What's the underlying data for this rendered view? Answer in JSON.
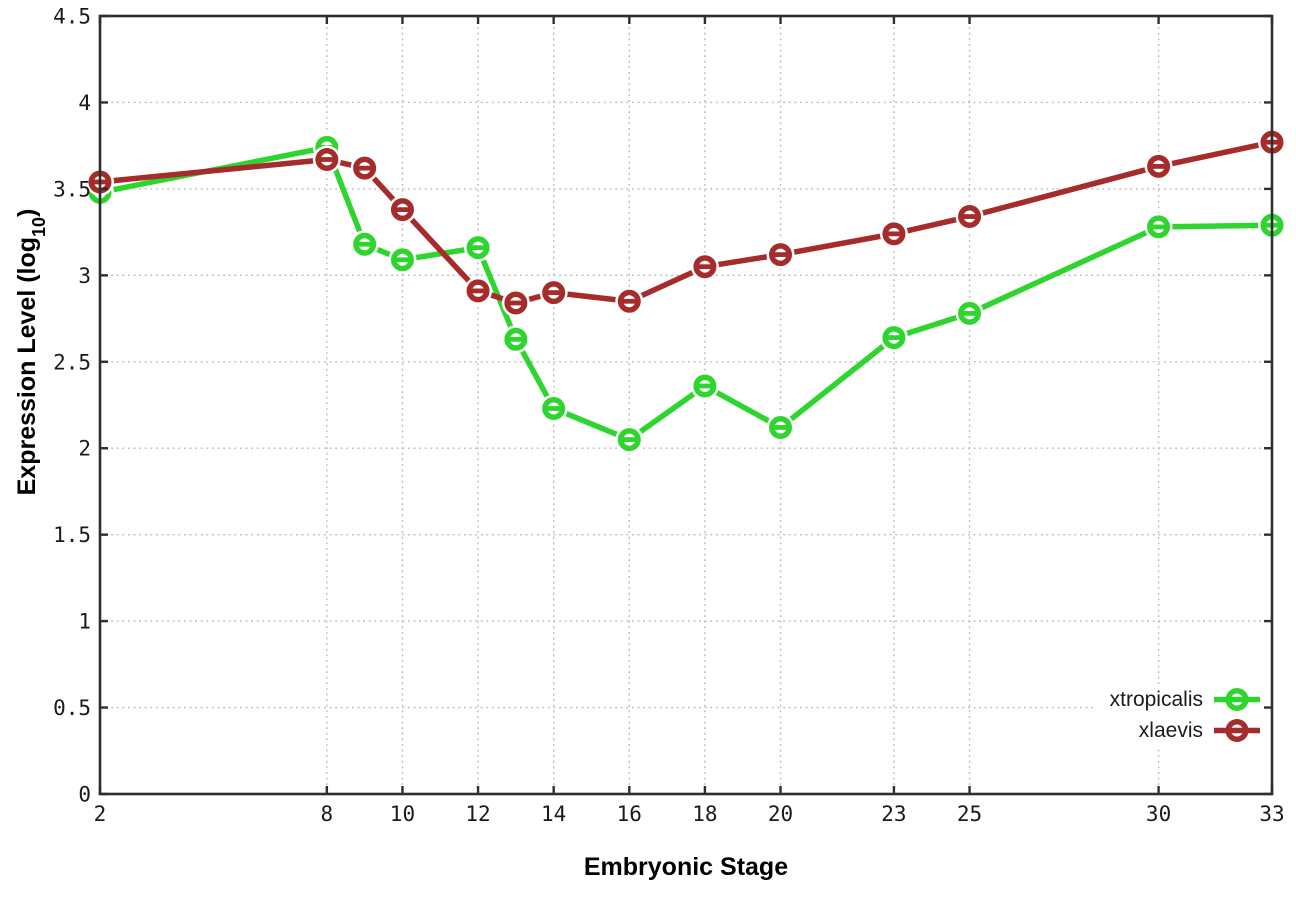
{
  "chart_data": {
    "type": "line",
    "title": "",
    "xlabel": "Embryonic Stage",
    "ylabel": "Expression Level (log10)",
    "ylabel_parts": {
      "main": "Expression Level (log",
      "sub": "10",
      "end": ")"
    },
    "x": [
      2,
      8,
      9,
      10,
      12,
      13,
      14,
      16,
      18,
      20,
      23,
      25,
      30,
      33
    ],
    "series": [
      {
        "name": "xtropicalis",
        "color": "#2ED52E",
        "values": [
          3.48,
          3.74,
          3.18,
          3.09,
          3.16,
          2.63,
          2.23,
          2.05,
          2.36,
          2.12,
          2.64,
          2.78,
          3.28,
          3.29
        ]
      },
      {
        "name": "xlaevis",
        "color": "#A62C2C",
        "values": [
          3.54,
          3.67,
          3.62,
          3.38,
          2.91,
          2.84,
          2.9,
          2.85,
          3.05,
          3.12,
          3.24,
          3.34,
          3.63,
          3.77
        ]
      }
    ],
    "xlim": [
      2,
      33
    ],
    "ylim": [
      0,
      4.5
    ],
    "xticks": [
      2,
      8,
      10,
      12,
      14,
      16,
      18,
      20,
      23,
      25,
      30,
      33
    ],
    "yticks": [
      0,
      0.5,
      1,
      1.5,
      2,
      2.5,
      3,
      3.5,
      4,
      4.5
    ],
    "grid": true,
    "legend_position": "inside-bottom-right",
    "marker": "open-circle",
    "colors": {
      "grid": "#b8b8b8",
      "axis": "#2e2e2e",
      "text": "#1a1a1a",
      "background": "#ffffff"
    }
  }
}
